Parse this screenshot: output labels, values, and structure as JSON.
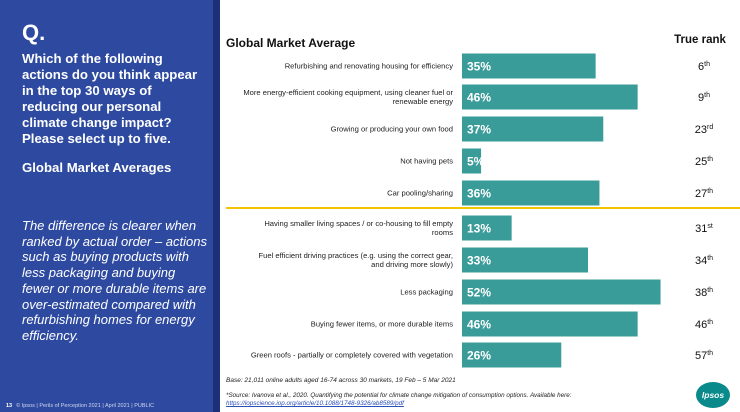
{
  "left_panel": {
    "q_mark": "Q.",
    "question": "Which of the following actions do you think appear in the top 30 ways of reducing our personal climate change impact? Please select up to five.",
    "subheading": "Global Market Averages",
    "note": "The difference is clearer when ranked by actual order – actions such as buying products with less packaging and buying fewer or more durable items are over-estimated compared with refurbishing homes for energy efficiency.",
    "page_number": "13",
    "footer": "© Ipsos | Perils of Perception 2021 | April 2021 | PUBLIC"
  },
  "colors": {
    "panel": "#2e4aa0",
    "bar": "#3a9c99",
    "divider": "#f5c400"
  },
  "chart_data": {
    "type": "bar",
    "orientation": "horizontal",
    "title": "Global Market Average",
    "rank_header": "True rank",
    "xlim": [
      0,
      55
    ],
    "items": [
      {
        "label": "Refurbishing and renovating housing for efficiency",
        "value": 35,
        "value_label": "35%",
        "rank": "6",
        "rank_suffix": "th"
      },
      {
        "label": "More energy-efficient cooking equipment, using cleaner fuel or renewable energy",
        "value": 46,
        "value_label": "46%",
        "rank": "9",
        "rank_suffix": "th"
      },
      {
        "label": "Growing or producing your own food",
        "value": 37,
        "value_label": "37%",
        "rank": "23",
        "rank_suffix": "rd"
      },
      {
        "label": "Not having pets",
        "value": 5,
        "value_label": "5%",
        "rank": "25",
        "rank_suffix": "th"
      },
      {
        "label": "Car pooling/sharing",
        "value": 36,
        "value_label": "36%",
        "rank": "27",
        "rank_suffix": "th"
      },
      {
        "label": "Having smaller living spaces / or co-housing to fill empty rooms",
        "value": 13,
        "value_label": "13%",
        "rank": "31",
        "rank_suffix": "st"
      },
      {
        "label": "Fuel efficient driving practices (e.g. using the correct gear, and driving more slowly)",
        "value": 33,
        "value_label": "33%",
        "rank": "34",
        "rank_suffix": "th"
      },
      {
        "label": "Less packaging",
        "value": 52,
        "value_label": "52%",
        "rank": "38",
        "rank_suffix": "th"
      },
      {
        "label": "Buying fewer items, or more durable items",
        "value": 46,
        "value_label": "46%",
        "rank": "46",
        "rank_suffix": "th"
      },
      {
        "label": "Green roofs - partially or completely covered with vegetation",
        "value": 26,
        "value_label": "26%",
        "rank": "57",
        "rank_suffix": "th"
      }
    ],
    "base_note": "Base: 21,011 online adults aged 16-74 across 30 markets,  19 Feb – 5 Mar 2021",
    "source": "*Source: Ivanova et al., 2020. Quantifying the potential for climate change mitigation of consumption options. Available here:",
    "source_link": "https://iopscience.iop.org/article/10.1088/1748-9326/ab8589/pdf"
  },
  "logo_text": "Ipsos"
}
